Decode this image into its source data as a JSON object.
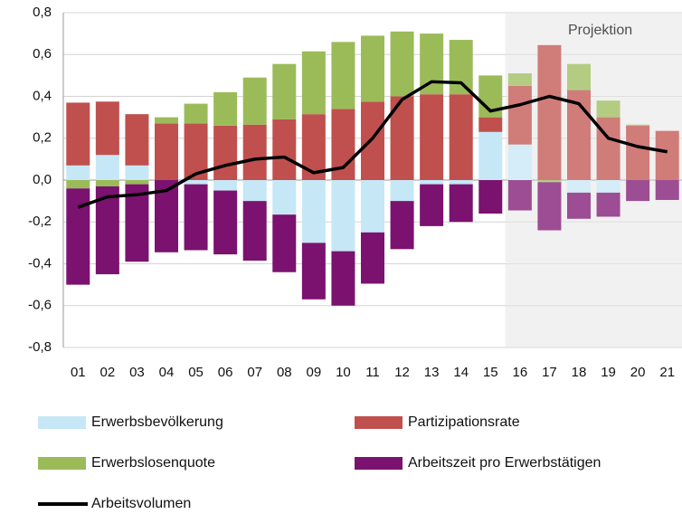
{
  "chart_data": {
    "type": "bar",
    "categories": [
      "01",
      "02",
      "03",
      "04",
      "05",
      "06",
      "07",
      "08",
      "09",
      "10",
      "11",
      "12",
      "13",
      "14",
      "15",
      "16",
      "17",
      "18",
      "19",
      "20",
      "21"
    ],
    "series": [
      {
        "name": "Erwerbsbevölkerung",
        "color": "#c6e7f6",
        "values": [
          0.07,
          0.12,
          0.07,
          0,
          -0.02,
          -0.05,
          -0.1,
          -0.165,
          -0.3,
          -0.34,
          -0.25,
          -0.1,
          -0.02,
          -0.02,
          0.23,
          0.17,
          0,
          -0.06,
          -0.06,
          0,
          0
        ]
      },
      {
        "name": "Partizipationsrate",
        "color": "#c0504d",
        "values": [
          0.3,
          0.255,
          0.245,
          0.27,
          0.27,
          0.26,
          0.265,
          0.29,
          0.315,
          0.34,
          0.375,
          0.4,
          0.41,
          0.41,
          0.07,
          0.28,
          0.645,
          0.43,
          0.3,
          0.26,
          0.235
        ]
      },
      {
        "name": "Erwerbslosenquote",
        "color": "#9bbb59",
        "values": [
          -0.04,
          -0.03,
          -0.02,
          0.03,
          0.095,
          0.16,
          0.225,
          0.265,
          0.3,
          0.32,
          0.315,
          0.31,
          0.29,
          0.26,
          0.2,
          0.06,
          -0.01,
          0.125,
          0.08,
          0.005,
          0
        ]
      },
      {
        "name": "Arbeitszeit pro Erwerbstätigen",
        "color": "#7b126f",
        "values": [
          -0.46,
          -0.42,
          -0.37,
          -0.345,
          -0.315,
          -0.305,
          -0.285,
          -0.275,
          -0.27,
          -0.26,
          -0.245,
          -0.23,
          -0.2,
          -0.18,
          -0.16,
          -0.145,
          -0.23,
          -0.125,
          -0.115,
          -0.1,
          -0.095
        ]
      },
      {
        "name": "Arbeitsvolumen",
        "type": "line",
        "color": "#000000",
        "values": [
          -0.13,
          -0.08,
          -0.07,
          -0.05,
          0.03,
          0.07,
          0.1,
          0.11,
          0.035,
          0.06,
          0.2,
          0.385,
          0.47,
          0.465,
          0.33,
          0.36,
          0.4,
          0.365,
          0.2,
          0.16,
          0.135
        ]
      }
    ],
    "ylim": [
      -0.8,
      0.8
    ],
    "yticks": [
      {
        "value": -0.8,
        "label": "-0,8"
      },
      {
        "value": -0.6,
        "label": "-0,6"
      },
      {
        "value": -0.4,
        "label": "-0,4"
      },
      {
        "value": -0.2,
        "label": "-0,2"
      },
      {
        "value": 0,
        "label": "0,0"
      },
      {
        "value": 0.2,
        "label": "0,2"
      },
      {
        "value": 0.4,
        "label": "0,4"
      },
      {
        "value": 0.6,
        "label": "0,6"
      },
      {
        "value": 0.8,
        "label": "0,8"
      }
    ],
    "grid": true,
    "projection": {
      "label": "Projektion",
      "from": "16"
    }
  }
}
